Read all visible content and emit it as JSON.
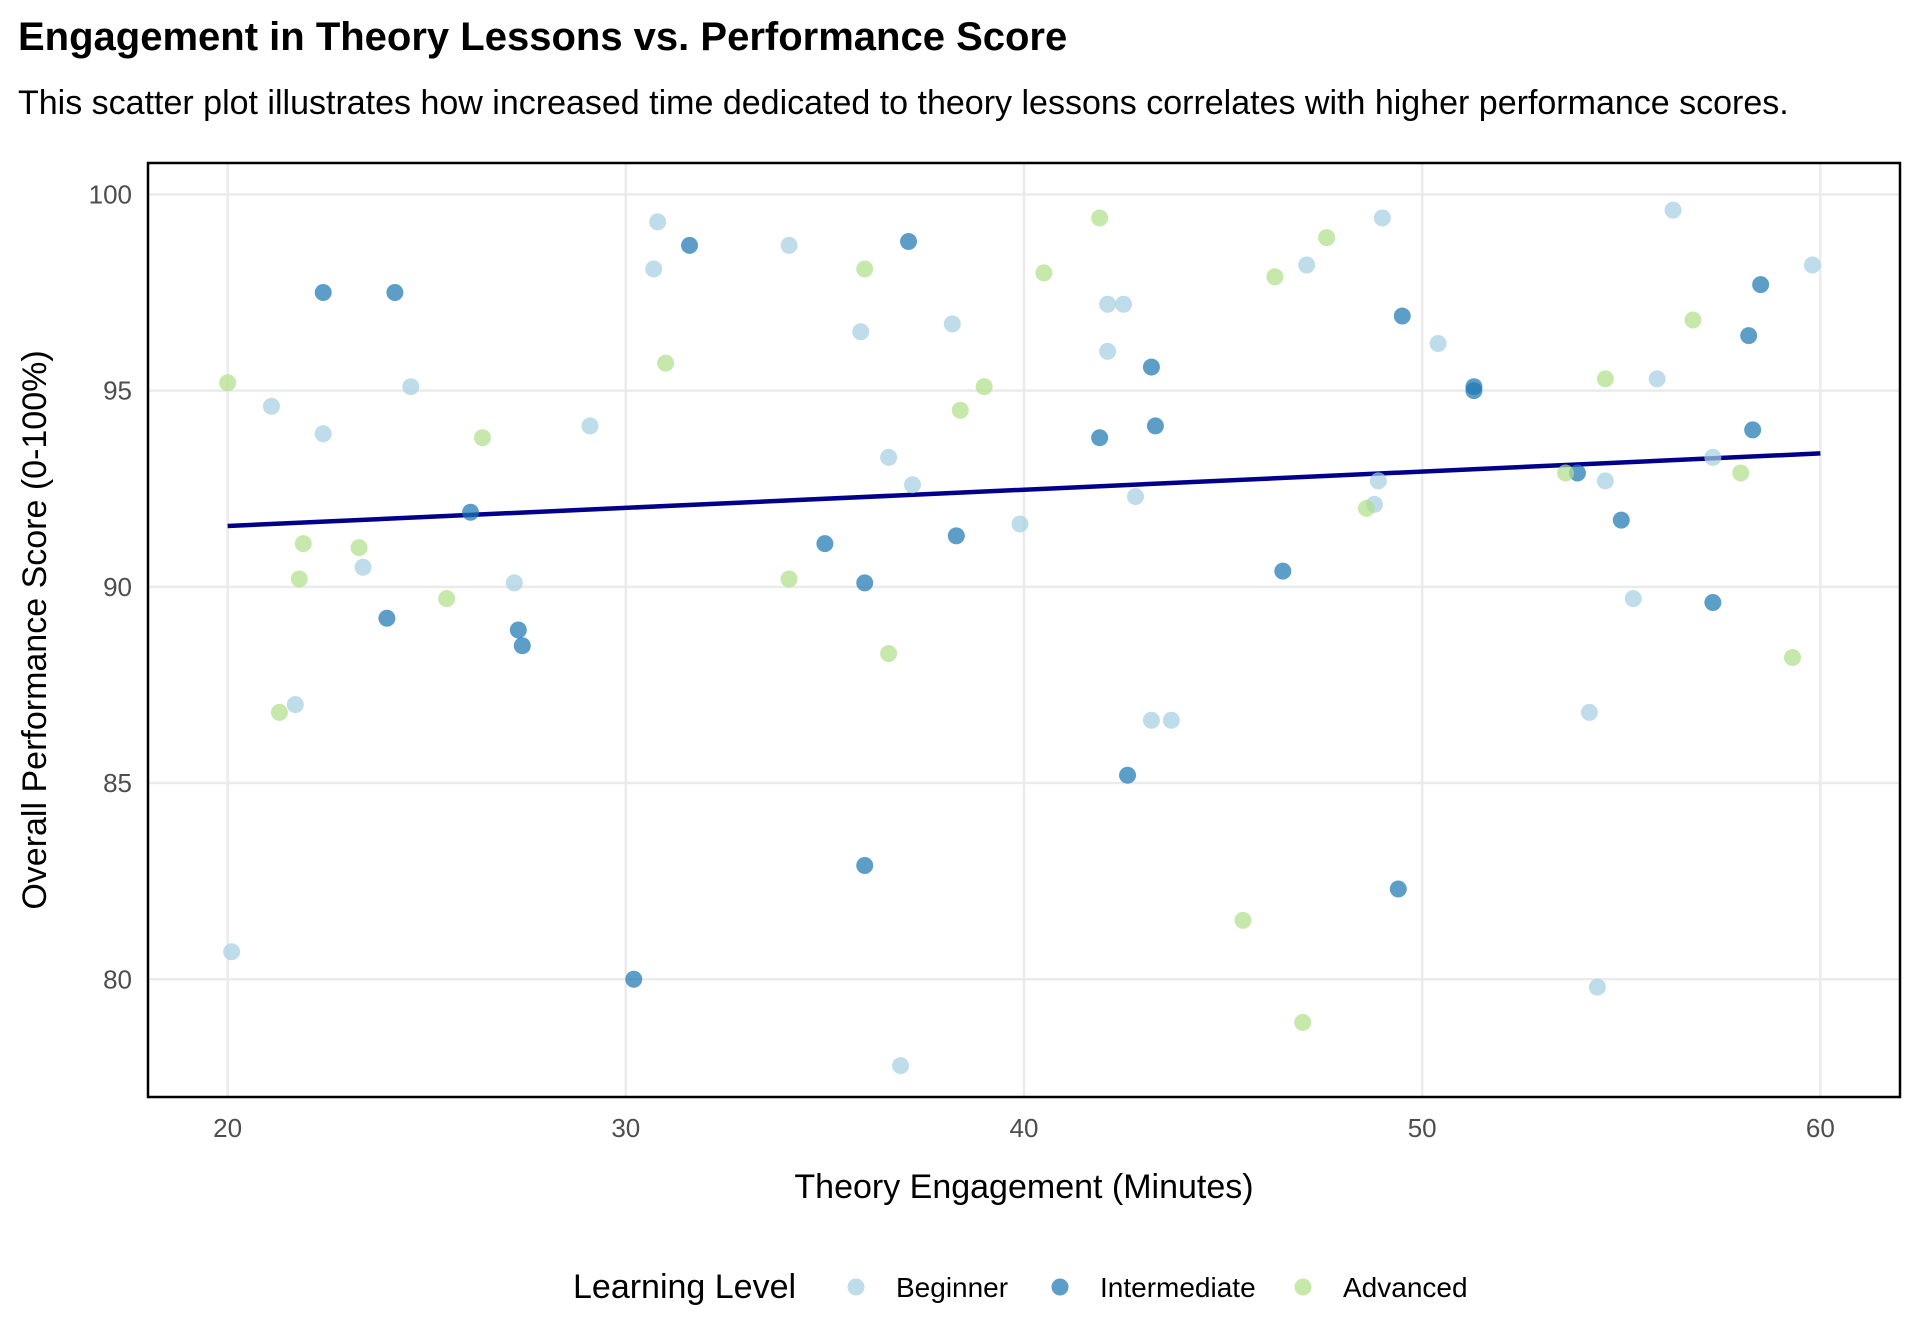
{
  "chart_data": {
    "type": "scatter",
    "title": "Engagement in Theory Lessons vs. Performance Score",
    "subtitle": "This scatter plot illustrates how increased time dedicated to theory lessons correlates with higher performance scores.",
    "xlabel": "Theory Engagement (Minutes)",
    "ylabel": "Overall Performance Score (0-100%)",
    "xlim": [
      18,
      62
    ],
    "ylim": [
      77,
      100.8
    ],
    "xticks": [
      20,
      30,
      40,
      50,
      60
    ],
    "yticks": [
      80,
      85,
      90,
      95,
      100
    ],
    "grid": true,
    "legend": {
      "title": "Learning Level",
      "position": "bottom"
    },
    "series": [
      {
        "name": "Beginner",
        "color": "#a6cee3",
        "points": [
          [
            20.1,
            80.7
          ],
          [
            21.1,
            94.6
          ],
          [
            21.7,
            87.0
          ],
          [
            22.4,
            93.9
          ],
          [
            23.4,
            90.5
          ],
          [
            24.6,
            95.1
          ],
          [
            27.2,
            90.1
          ],
          [
            29.1,
            94.1
          ],
          [
            30.7,
            98.1
          ],
          [
            30.8,
            99.3
          ],
          [
            34.1,
            98.7
          ],
          [
            35.9,
            96.5
          ],
          [
            36.6,
            93.3
          ],
          [
            36.9,
            77.8
          ],
          [
            37.2,
            92.6
          ],
          [
            38.2,
            96.7
          ],
          [
            39.9,
            91.6
          ],
          [
            42.1,
            96.0
          ],
          [
            42.1,
            97.2
          ],
          [
            42.5,
            97.2
          ],
          [
            42.8,
            92.3
          ],
          [
            43.2,
            86.6
          ],
          [
            43.7,
            86.6
          ],
          [
            47.1,
            98.2
          ],
          [
            48.8,
            92.1
          ],
          [
            48.9,
            92.7
          ],
          [
            49.0,
            99.4
          ],
          [
            50.4,
            96.2
          ],
          [
            54.2,
            86.8
          ],
          [
            54.4,
            79.8
          ],
          [
            54.6,
            92.7
          ],
          [
            55.3,
            89.7
          ],
          [
            55.9,
            95.3
          ],
          [
            56.3,
            99.6
          ],
          [
            57.3,
            93.3
          ],
          [
            59.8,
            98.2
          ]
        ]
      },
      {
        "name": "Intermediate",
        "color": "#1f78b4",
        "points": [
          [
            22.4,
            97.5
          ],
          [
            24.0,
            89.2
          ],
          [
            24.2,
            97.5
          ],
          [
            26.1,
            91.9
          ],
          [
            27.3,
            88.9
          ],
          [
            27.4,
            88.5
          ],
          [
            30.2,
            80.0
          ],
          [
            31.6,
            98.7
          ],
          [
            35.0,
            91.1
          ],
          [
            36.0,
            82.9
          ],
          [
            36.0,
            90.1
          ],
          [
            37.1,
            98.8
          ],
          [
            38.3,
            91.3
          ],
          [
            41.9,
            93.8
          ],
          [
            42.6,
            85.2
          ],
          [
            43.2,
            95.6
          ],
          [
            43.3,
            94.1
          ],
          [
            46.5,
            90.4
          ],
          [
            49.4,
            82.3
          ],
          [
            49.5,
            96.9
          ],
          [
            51.3,
            95.1
          ],
          [
            51.3,
            95.0
          ],
          [
            53.9,
            92.9
          ],
          [
            55.0,
            91.7
          ],
          [
            57.3,
            89.6
          ],
          [
            58.2,
            96.4
          ],
          [
            58.3,
            94.0
          ],
          [
            58.5,
            97.7
          ]
        ]
      },
      {
        "name": "Advanced",
        "color": "#b2df8a",
        "points": [
          [
            20.0,
            95.2
          ],
          [
            21.3,
            86.8
          ],
          [
            21.8,
            90.2
          ],
          [
            21.9,
            91.1
          ],
          [
            23.3,
            91.0
          ],
          [
            25.5,
            89.7
          ],
          [
            26.4,
            93.8
          ],
          [
            31.0,
            95.7
          ],
          [
            34.1,
            90.2
          ],
          [
            36.0,
            98.1
          ],
          [
            36.6,
            88.3
          ],
          [
            38.4,
            94.5
          ],
          [
            39.0,
            95.1
          ],
          [
            40.5,
            98.0
          ],
          [
            41.9,
            99.4
          ],
          [
            45.5,
            81.5
          ],
          [
            47.0,
            78.9
          ],
          [
            46.3,
            97.9
          ],
          [
            47.6,
            98.9
          ],
          [
            48.6,
            92.0
          ],
          [
            53.6,
            92.9
          ],
          [
            54.6,
            95.3
          ],
          [
            56.8,
            96.8
          ],
          [
            58.0,
            92.9
          ],
          [
            59.3,
            88.2
          ]
        ]
      }
    ],
    "trend_line": {
      "color": "#00008b",
      "start": [
        20.0,
        91.55
      ],
      "end": [
        60.0,
        93.4
      ]
    }
  }
}
